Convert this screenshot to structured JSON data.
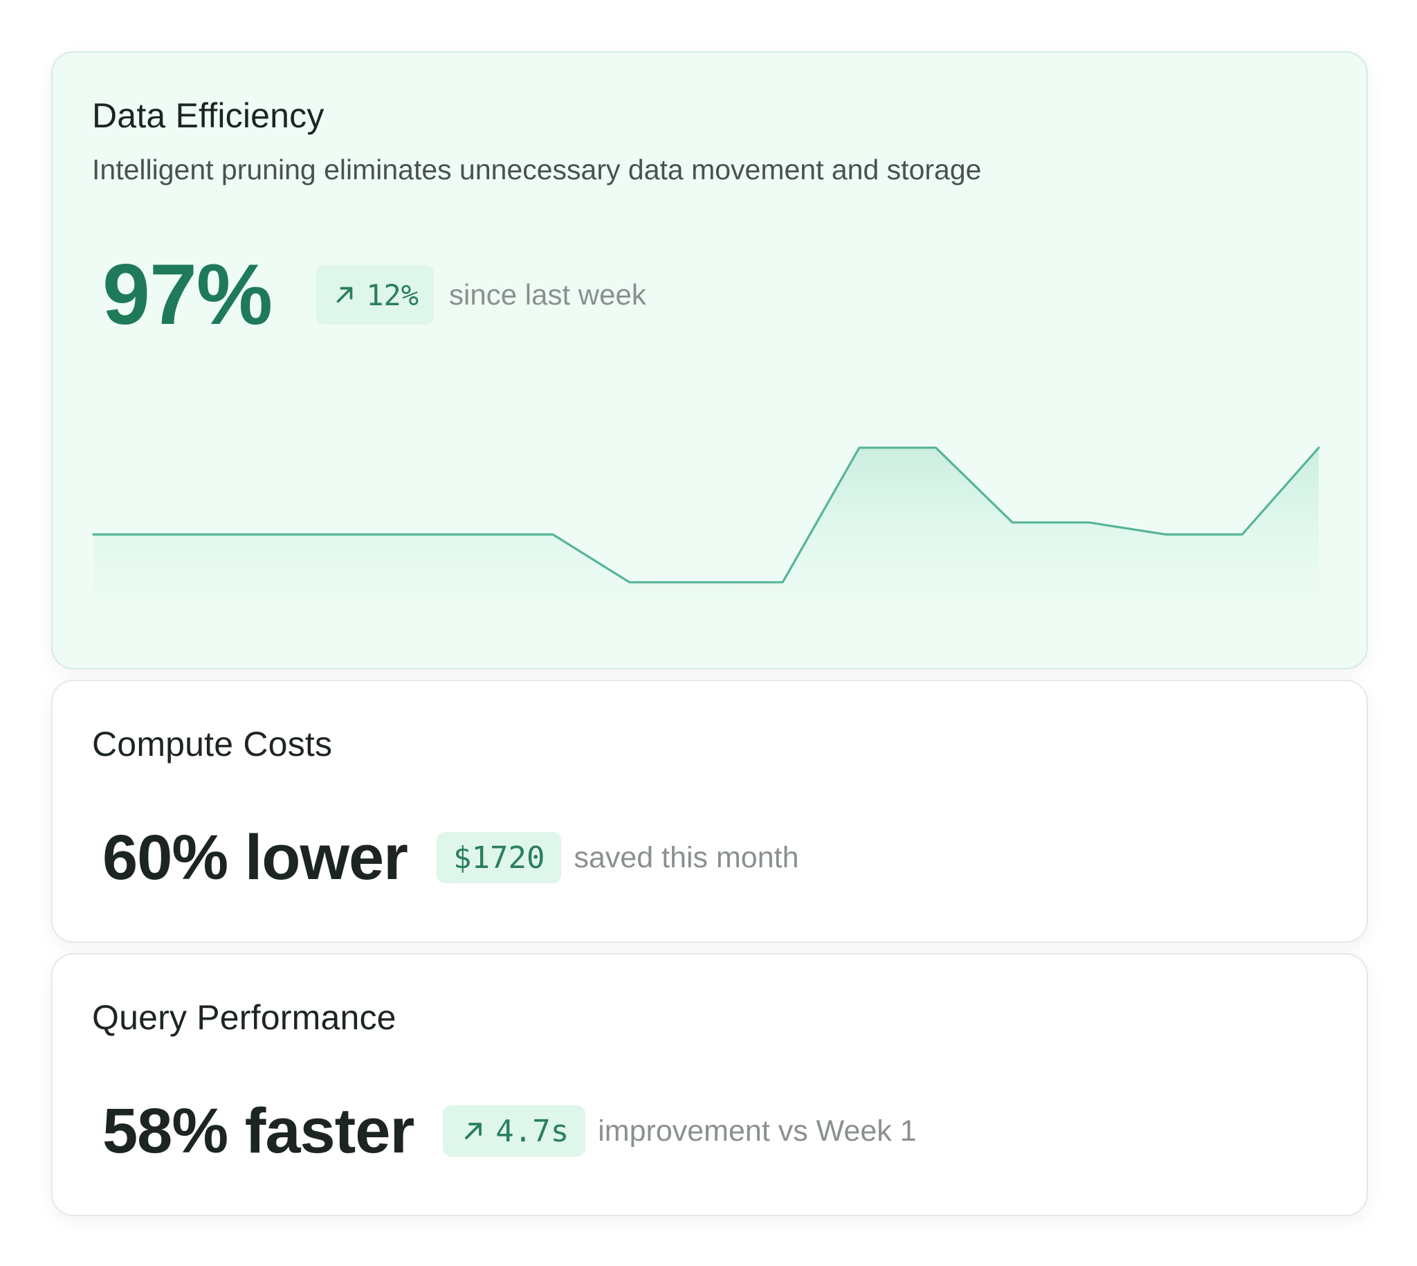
{
  "cards": [
    {
      "title": "Data Efficiency",
      "subtitle": "Intelligent pruning eliminates unnecessary data movement and storage",
      "value": "97%",
      "pill_text": "12%",
      "pill_icon": "arrow-up-right-icon",
      "caption": "since last week"
    },
    {
      "title": "Compute Costs",
      "value": "60% lower",
      "pill_text": "$1720",
      "caption": "saved this month"
    },
    {
      "title": "Query Performance",
      "value": "58% faster",
      "pill_text": "4.7s",
      "pill_icon": "arrow-up-right-icon",
      "caption": "improvement vs Week 1"
    }
  ],
  "colors": {
    "accent": "#1f7a5a",
    "line": "#56b598",
    "pill_bg": "#dff6eb",
    "primary_card_bg": "#effcf5"
  },
  "sparkline": {
    "type": "area",
    "points": [
      0.37,
      0.37,
      0.37,
      0.37,
      0.37,
      0.37,
      0.37,
      0.05,
      0.05,
      0.05,
      0.95,
      0.95,
      0.45,
      0.45,
      0.37,
      0.37,
      0.95
    ]
  }
}
